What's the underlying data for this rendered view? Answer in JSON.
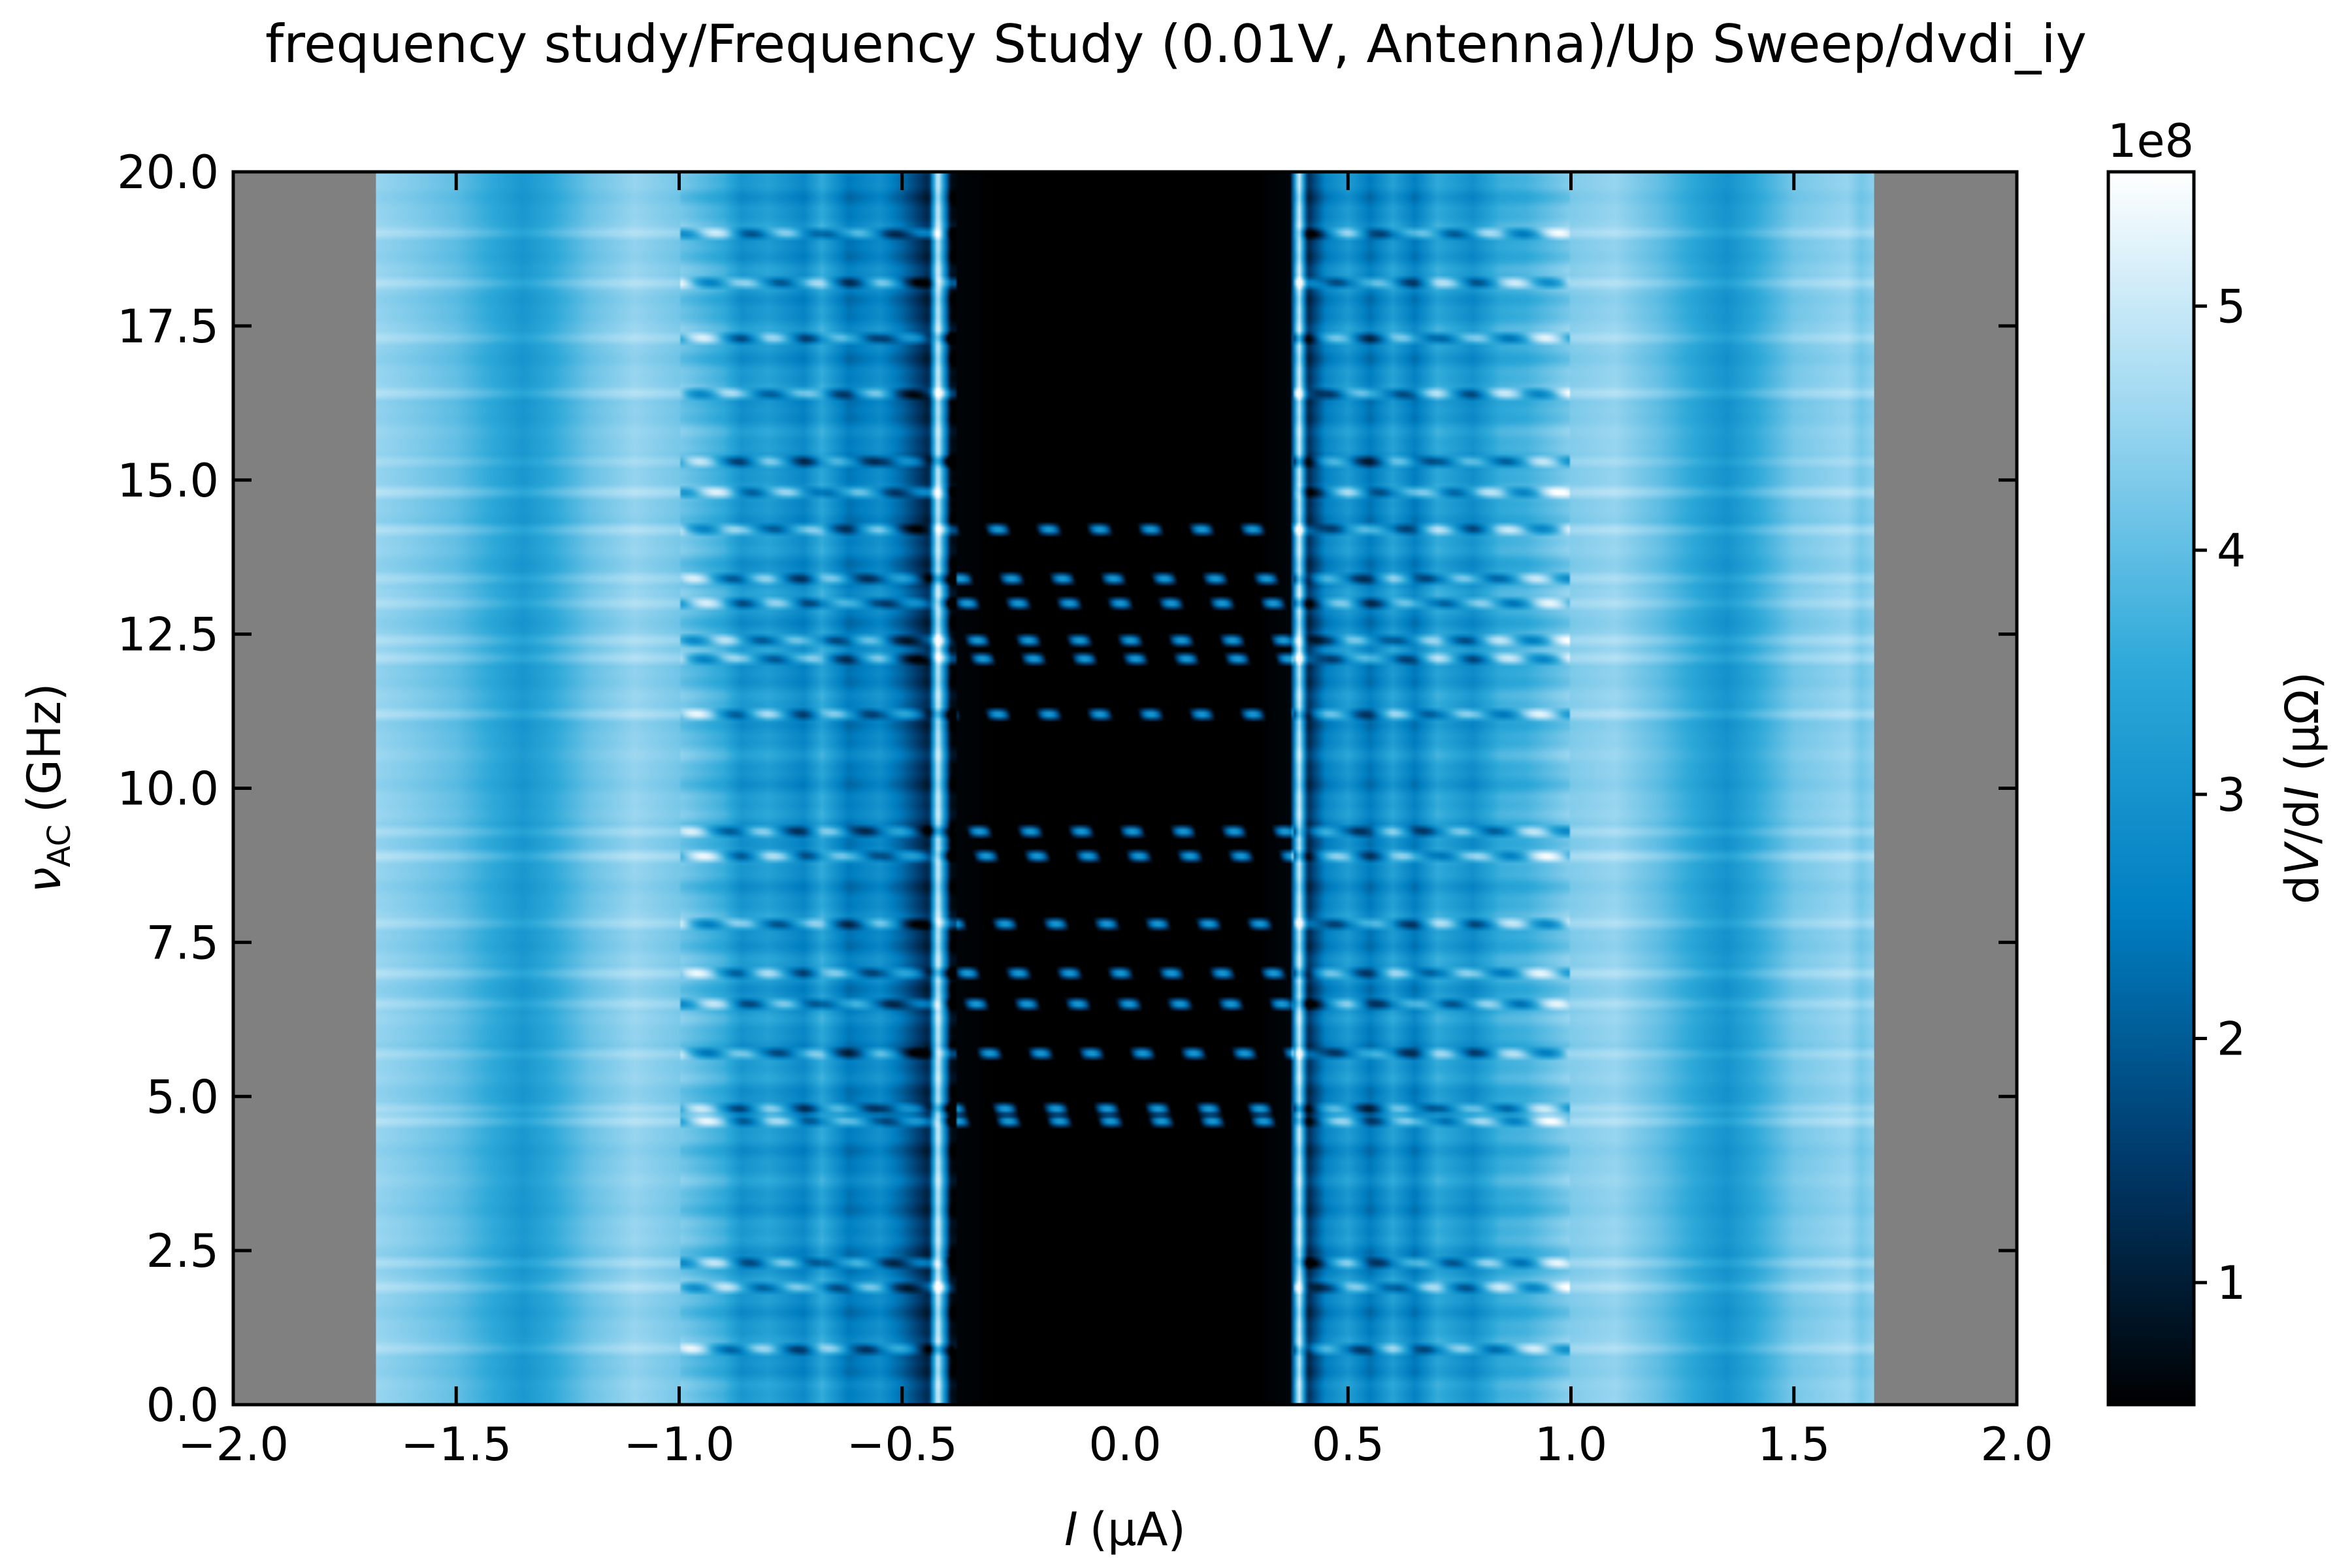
{
  "chart_data": {
    "type": "heatmap",
    "title": "frequency study/Frequency Study (0.01V, Antenna)/Up Sweep/dvdi_iy",
    "xlabel": {
      "symbol": "I",
      "unit": "(µA)"
    },
    "ylabel": {
      "symbol": "ν",
      "subscript": "AC",
      "unit": "(GHz)"
    },
    "xlim": [
      -2.0,
      2.0
    ],
    "ylim": [
      0.0,
      20.0
    ],
    "x_ticks": [
      -2.0,
      -1.5,
      -1.0,
      -0.5,
      0.0,
      0.5,
      1.0,
      1.5,
      2.0
    ],
    "x_tick_labels": [
      "−2.0",
      "−1.5",
      "−1.0",
      "−0.5",
      "0.0",
      "0.5",
      "1.0",
      "1.5",
      "2.0"
    ],
    "y_ticks": [
      0.0,
      2.5,
      5.0,
      7.5,
      10.0,
      12.5,
      15.0,
      17.5,
      20.0
    ],
    "y_tick_labels": [
      "0.0",
      "2.5",
      "5.0",
      "7.5",
      "10.0",
      "12.5",
      "15.0",
      "17.5",
      "20.0"
    ],
    "data_x_range": [
      -1.68,
      1.68
    ],
    "missing_color": "#808080",
    "colorbar": {
      "label": {
        "prefix": "d",
        "v": "V",
        "mid": "/d",
        "i": "I",
        "unit": " (µΩ)"
      },
      "offset_text": "1e8",
      "range": [
        0.5,
        5.55
      ],
      "scale": 100000000,
      "ticks": [
        1,
        2,
        3,
        4,
        5
      ],
      "tick_labels": [
        "1",
        "2",
        "3",
        "4",
        "5"
      ],
      "colormap": [
        "#000000",
        "#003a6b",
        "#007fc2",
        "#2ea9d9",
        "#9ad6f0",
        "#ffffff"
      ]
    },
    "profile_x_uA": [
      -1.68,
      -1.6,
      -1.5,
      -1.4,
      -1.35,
      -1.3,
      -1.2,
      -1.1,
      -1.0,
      -0.9,
      -0.86,
      -0.8,
      -0.72,
      -0.68,
      -0.62,
      -0.55,
      -0.5,
      -0.44,
      -0.42,
      -0.39,
      -0.3,
      0.0,
      0.3,
      0.37,
      0.39,
      0.41,
      0.45,
      0.5,
      0.55,
      0.6,
      0.65,
      0.7,
      0.78,
      0.84,
      0.9,
      1.0,
      1.1,
      1.2,
      1.3,
      1.35,
      1.4,
      1.5,
      1.58,
      1.62,
      1.65,
      1.68
    ],
    "profile_value_1e8": [
      4.5,
      4.3,
      4.0,
      3.4,
      3.1,
      3.4,
      4.1,
      4.5,
      4.2,
      3.6,
      3.0,
      3.3,
      2.7,
      3.5,
      2.4,
      2.9,
      2.2,
      1.1,
      5.2,
      0.6,
      0.5,
      0.5,
      0.5,
      0.6,
      5.2,
      1.2,
      2.6,
      3.2,
      2.4,
      3.3,
      2.5,
      3.5,
      2.9,
      3.6,
      3.7,
      4.3,
      4.5,
      4.0,
      3.3,
      3.0,
      3.4,
      4.2,
      4.4,
      4.5,
      4.2,
      4.4
    ],
    "band_frequencies_GHz": [
      0.9,
      1.9,
      2.3,
      4.6,
      4.8,
      5.7,
      6.5,
      7.0,
      7.8,
      8.9,
      9.3,
      11.2,
      12.1,
      12.4,
      13.0,
      13.4,
      14.2,
      14.8,
      15.3,
      16.4,
      17.3,
      18.2,
      19.0
    ]
  }
}
